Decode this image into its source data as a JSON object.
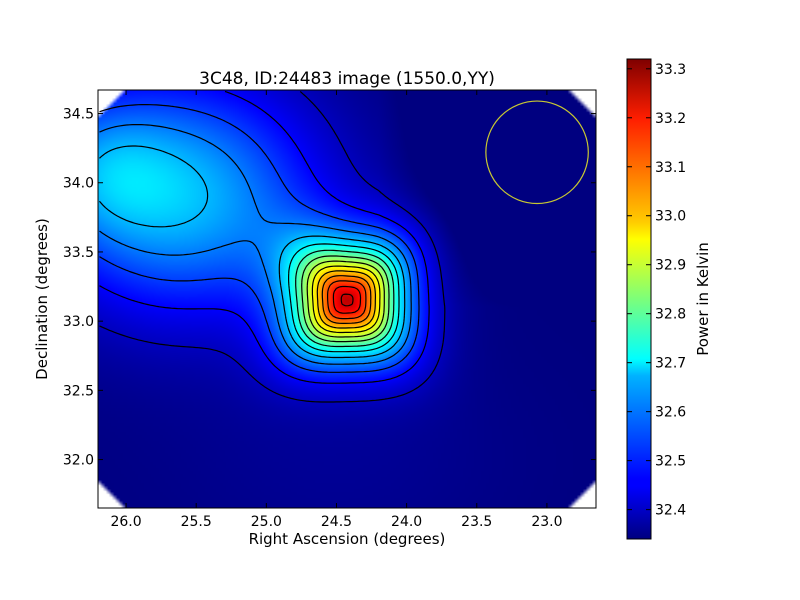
{
  "chart_data": {
    "type": "heatmap",
    "title": "3C48, ID:24483 image (1550.0,YY)",
    "xlabel": "Right Ascension (degrees)",
    "ylabel": "Declination (degrees)",
    "xlim": [
      26.2,
      22.65
    ],
    "ylim": [
      31.65,
      34.67
    ],
    "x_ticks": [
      26.0,
      25.5,
      25.0,
      24.5,
      24.0,
      23.5,
      23.0
    ],
    "x_tick_labels": [
      "26.0",
      "25.5",
      "25.0",
      "24.5",
      "24.0",
      "23.5",
      "23.0"
    ],
    "y_ticks": [
      32.0,
      32.5,
      33.0,
      33.5,
      34.0,
      34.5
    ],
    "y_tick_labels": [
      "32.0",
      "32.5",
      "33.0",
      "33.5",
      "34.0",
      "34.5"
    ],
    "colormap": "jet",
    "colorbar": {
      "label": "Power in Kelvin",
      "range": [
        32.34,
        33.32
      ],
      "ticks": [
        32.4,
        32.5,
        32.6,
        32.7,
        32.8,
        32.9,
        33.0,
        33.1,
        33.2,
        33.3
      ],
      "tick_labels": [
        "32.4",
        "32.5",
        "32.6",
        "32.7",
        "32.8",
        "32.9",
        "33.0",
        "33.1",
        "33.2",
        "33.3"
      ]
    },
    "source_peak": {
      "ra": 24.42,
      "dec": 33.15,
      "value": 33.32
    },
    "background_min": 32.34,
    "contour_color": "#000000",
    "beam_circle": {
      "ra": 23.07,
      "dec": 34.22,
      "radius_deg": 0.37,
      "color": "#c8c832"
    },
    "grid": false
  }
}
